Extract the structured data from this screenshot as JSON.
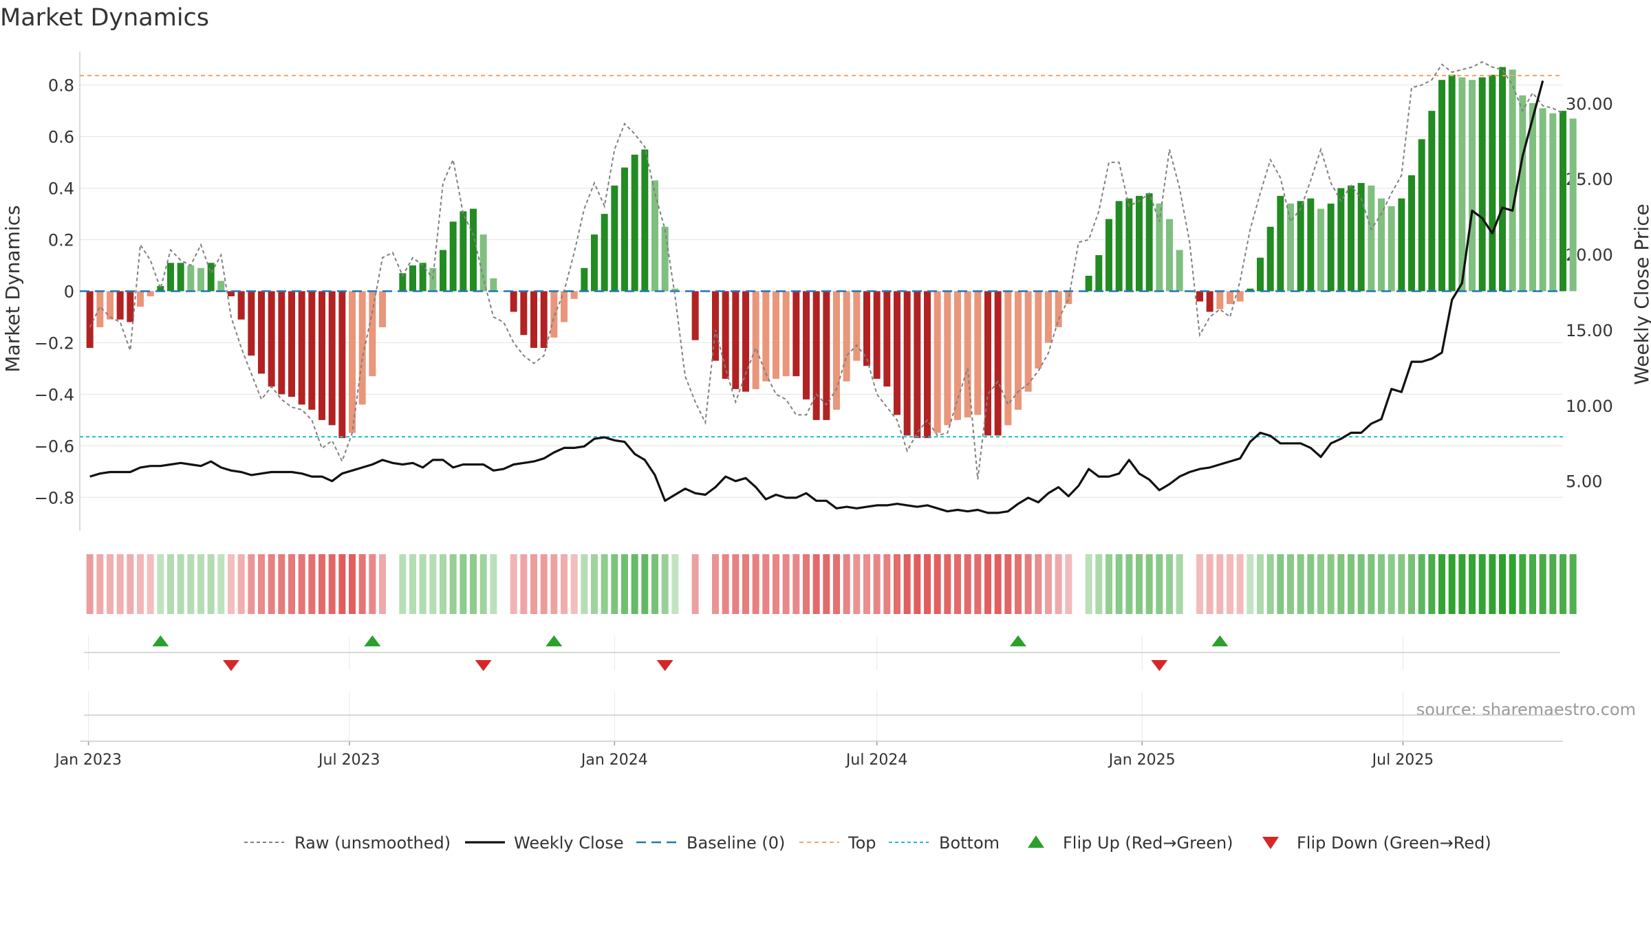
{
  "chart_data": {
    "type": "bar",
    "title": "Market Dynamics",
    "ylabel_left": "Market Dynamics",
    "ylabel_right": "Weekly Close Price",
    "source_label": "source: sharemaestro.com",
    "x_start": "2023-01-02",
    "x_interval_days": 7,
    "x_tick_labels": [
      "Jan 2023",
      "Jul 2023",
      "Jan 2024",
      "Jul 2024",
      "Jan 2025",
      "Jul 2025"
    ],
    "x_tick_dates": [
      "2023-01-01",
      "2023-07-01",
      "2024-01-01",
      "2024-07-01",
      "2025-01-01",
      "2025-07-01"
    ],
    "xlim": [
      "2022-12-26",
      "2025-10-20"
    ],
    "ylim_left": [
      -0.93,
      0.93
    ],
    "ylim_right": [
      1.71,
      33.43
    ],
    "y_ticks_left": [
      -0.8,
      -0.6,
      -0.4,
      -0.2,
      0.0,
      0.2,
      0.4,
      0.6,
      0.8
    ],
    "y_tick_labels_left": [
      "−0.8",
      "−0.6",
      "−0.4",
      "−0.2",
      "0",
      "0.2",
      "0.4",
      "0.6",
      "0.8"
    ],
    "y_ticks_right": [
      5,
      10,
      15,
      20,
      25,
      30
    ],
    "y_tick_labels_right": [
      "5.00",
      "10.00",
      "15.00",
      "20.00",
      "25.00",
      "30.00"
    ],
    "top_level": 0.837,
    "bottom_level": -0.565,
    "baseline": 0,
    "colors": {
      "strong_green": "#228b22",
      "light_green": "#7fbf7f",
      "strong_red": "#b22222",
      "light_red": "#e9967a",
      "top_line": "#f4a460",
      "bottom_line": "#17becf",
      "baseline": "#1f77b4",
      "close_line": "#111111",
      "raw_line": "#808080",
      "flip_up": "#2ca02c",
      "flip_down": "#d62728"
    },
    "bars": [
      -0.22,
      -0.14,
      -0.11,
      -0.11,
      -0.12,
      -0.06,
      -0.02,
      0.02,
      0.11,
      0.11,
      0.1,
      0.09,
      0.11,
      0.04,
      -0.02,
      -0.11,
      -0.25,
      -0.32,
      -0.37,
      -0.4,
      -0.41,
      -0.44,
      -0.46,
      -0.5,
      -0.52,
      -0.57,
      -0.55,
      -0.44,
      -0.33,
      -0.14,
      0.0,
      0.07,
      0.1,
      0.11,
      0.09,
      0.16,
      0.27,
      0.31,
      0.32,
      0.22,
      0.05,
      0.0,
      -0.08,
      -0.17,
      -0.22,
      -0.22,
      -0.18,
      -0.12,
      -0.03,
      0.09,
      0.22,
      0.3,
      0.41,
      0.48,
      0.53,
      0.55,
      0.43,
      0.25,
      0.01,
      0.0,
      -0.19,
      0.0,
      -0.27,
      -0.34,
      -0.38,
      -0.39,
      -0.38,
      -0.35,
      -0.34,
      -0.33,
      -0.33,
      -0.42,
      -0.5,
      -0.5,
      -0.46,
      -0.35,
      -0.27,
      -0.29,
      -0.34,
      -0.37,
      -0.48,
      -0.56,
      -0.57,
      -0.57,
      -0.55,
      -0.52,
      -0.5,
      -0.49,
      -0.48,
      -0.56,
      -0.56,
      -0.52,
      -0.46,
      -0.39,
      -0.3,
      -0.2,
      -0.14,
      -0.05,
      0.0,
      0.06,
      0.14,
      0.28,
      0.35,
      0.36,
      0.37,
      0.38,
      0.34,
      0.28,
      0.16,
      0.0,
      -0.04,
      -0.08,
      -0.07,
      -0.05,
      -0.04,
      0.01,
      0.13,
      0.25,
      0.37,
      0.34,
      0.35,
      0.36,
      0.32,
      0.34,
      0.4,
      0.41,
      0.42,
      0.41,
      0.36,
      0.33,
      0.36,
      0.45,
      0.59,
      0.7,
      0.82,
      0.84,
      0.83,
      0.82,
      0.83,
      0.84,
      0.87,
      0.86,
      0.76,
      0.73,
      0.71,
      0.69,
      0.7,
      0.67
    ],
    "raw": [
      -0.14,
      -0.06,
      -0.1,
      -0.12,
      -0.23,
      0.18,
      0.12,
      0.01,
      0.16,
      0.12,
      0.1,
      0.18,
      0.07,
      0.14,
      -0.1,
      -0.22,
      -0.32,
      -0.42,
      -0.37,
      -0.42,
      -0.45,
      -0.46,
      -0.5,
      -0.61,
      -0.58,
      -0.66,
      -0.55,
      -0.26,
      -0.08,
      0.13,
      0.15,
      0.06,
      0.13,
      0.1,
      0.05,
      0.42,
      0.51,
      0.3,
      0.22,
      0.05,
      -0.1,
      -0.12,
      -0.2,
      -0.25,
      -0.28,
      -0.25,
      -0.1,
      0.0,
      0.15,
      0.32,
      0.42,
      0.33,
      0.55,
      0.65,
      0.61,
      0.56,
      0.38,
      0.24,
      -0.02,
      -0.33,
      -0.43,
      -0.51,
      -0.15,
      -0.3,
      -0.43,
      -0.32,
      -0.22,
      -0.32,
      -0.4,
      -0.42,
      -0.48,
      -0.48,
      -0.4,
      -0.44,
      -0.38,
      -0.25,
      -0.21,
      -0.26,
      -0.4,
      -0.45,
      -0.5,
      -0.62,
      -0.55,
      -0.5,
      -0.56,
      -0.55,
      -0.42,
      -0.3,
      -0.73,
      -0.4,
      -0.35,
      -0.44,
      -0.39,
      -0.36,
      -0.31,
      -0.24,
      -0.11,
      -0.03,
      0.19,
      0.2,
      0.31,
      0.5,
      0.5,
      0.33,
      0.35,
      0.38,
      0.27,
      0.55,
      0.4,
      0.19,
      -0.17,
      -0.1,
      -0.07,
      -0.1,
      0.04,
      0.24,
      0.38,
      0.51,
      0.44,
      0.27,
      0.32,
      0.43,
      0.55,
      0.42,
      0.35,
      0.41,
      0.36,
      0.24,
      0.3,
      0.38,
      0.45,
      0.79,
      0.8,
      0.82,
      0.88,
      0.85,
      0.86,
      0.87,
      0.89,
      0.87,
      0.86,
      0.8,
      0.7,
      0.77,
      0.72,
      0.71,
      0.69
    ],
    "close": [
      5.3,
      5.5,
      5.6,
      5.6,
      5.6,
      5.9,
      6.0,
      6.0,
      6.1,
      6.2,
      6.1,
      6.0,
      6.3,
      5.9,
      5.7,
      5.6,
      5.4,
      5.5,
      5.6,
      5.6,
      5.6,
      5.5,
      5.3,
      5.3,
      5.0,
      5.5,
      5.7,
      5.9,
      6.1,
      6.4,
      6.2,
      6.1,
      6.2,
      5.9,
      6.4,
      6.4,
      5.9,
      6.1,
      6.1,
      6.1,
      5.7,
      5.8,
      6.1,
      6.2,
      6.3,
      6.5,
      6.9,
      7.2,
      7.2,
      7.3,
      7.8,
      7.9,
      7.7,
      7.6,
      6.8,
      6.4,
      5.4,
      3.7,
      4.1,
      4.5,
      4.2,
      4.1,
      4.6,
      5.3,
      5.0,
      5.2,
      4.6,
      3.8,
      4.1,
      3.9,
      3.9,
      4.2,
      3.7,
      3.7,
      3.2,
      3.3,
      3.2,
      3.3,
      3.4,
      3.4,
      3.5,
      3.4,
      3.3,
      3.4,
      3.2,
      3.0,
      3.1,
      3.0,
      3.1,
      2.9,
      2.9,
      3.0,
      3.5,
      3.9,
      3.6,
      4.2,
      4.6,
      4.0,
      4.7,
      5.8,
      5.3,
      5.3,
      5.5,
      6.4,
      5.5,
      5.1,
      4.4,
      4.8,
      5.3,
      5.6,
      5.8,
      5.9,
      6.1,
      6.3,
      6.5,
      7.6,
      8.2,
      8.0,
      7.5,
      7.5,
      7.5,
      7.2,
      6.6,
      7.5,
      7.8,
      8.2,
      8.2,
      8.8,
      9.1,
      11.1,
      10.9,
      12.9,
      12.9,
      13.1,
      13.5,
      17.0,
      18.1,
      22.9,
      22.4,
      21.4,
      23.1,
      22.9,
      26.5,
      29.0,
      31.5
    ],
    "flip_up_dates": [
      "2023-02-20",
      "2023-07-17",
      "2023-11-20",
      "2024-10-07",
      "2025-02-24"
    ],
    "flip_down_dates": [
      "2023-04-10",
      "2023-10-02",
      "2024-02-05",
      "2025-01-13"
    ]
  },
  "legend": {
    "items": [
      {
        "key": "raw",
        "label": "Raw (unsmoothed)"
      },
      {
        "key": "close",
        "label": "Weekly Close"
      },
      {
        "key": "baseline",
        "label": "Baseline (0)"
      },
      {
        "key": "top",
        "label": "Top"
      },
      {
        "key": "bottom",
        "label": "Bottom"
      },
      {
        "key": "flip_up",
        "label": "Flip Up (Red→Green)"
      },
      {
        "key": "flip_down",
        "label": "Flip Down (Green→Red)"
      }
    ]
  }
}
